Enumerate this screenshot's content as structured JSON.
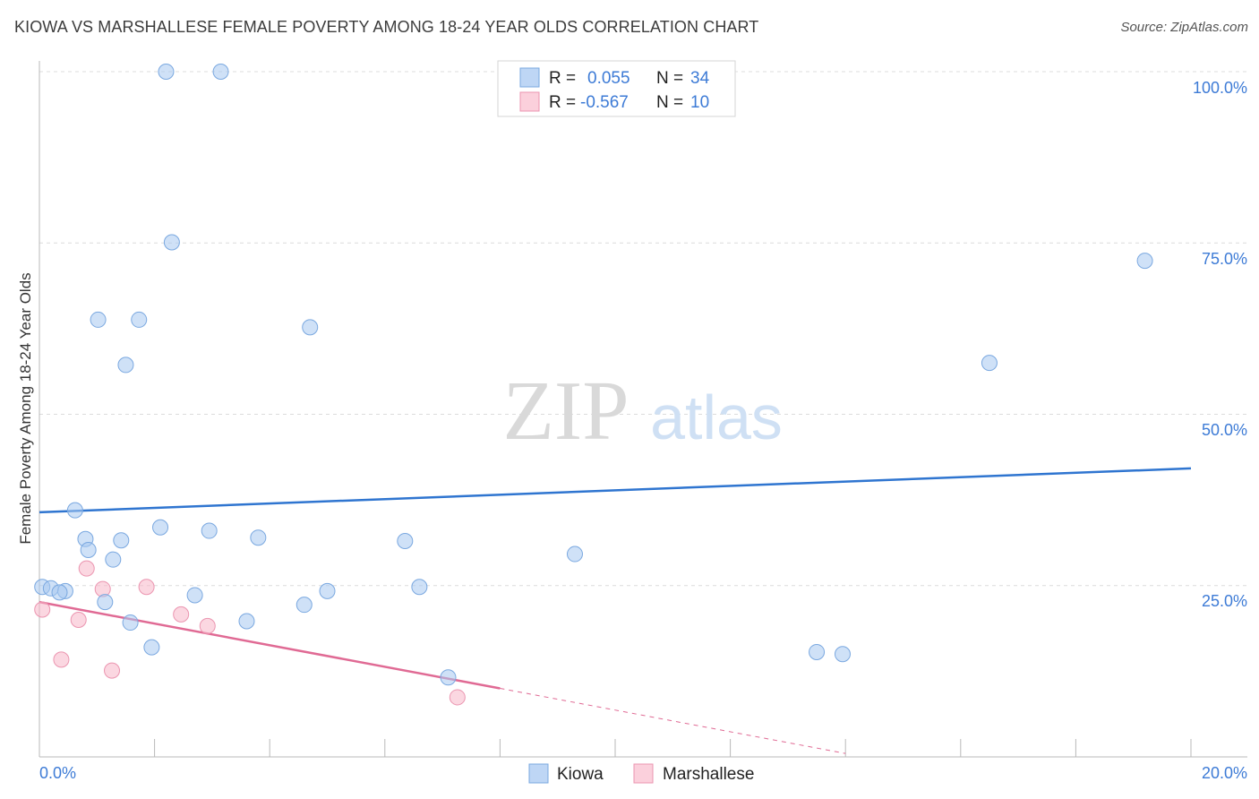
{
  "title": "KIOWA VS MARSHALLESE FEMALE POVERTY AMONG 18-24 YEAR OLDS CORRELATION CHART",
  "source": "Source: ZipAtlas.com",
  "watermark": {
    "zip": "ZIP",
    "atlas": "atlas"
  },
  "legend_box": {
    "rows": [
      {
        "r_label": "R =",
        "r_value": "0.055",
        "n_label": "N =",
        "n_value": "34"
      },
      {
        "r_label": "R =",
        "r_value": "-0.567",
        "n_label": "N =",
        "n_value": "10"
      }
    ]
  },
  "bottom_legend": {
    "kiowa": "Kiowa",
    "marshallese": "Marshallese"
  },
  "x_tick_labels": {
    "left": "0.0%",
    "right": "20.0%"
  },
  "y_tick_labels": [
    "100.0%",
    "75.0%",
    "50.0%",
    "25.0%"
  ],
  "chart_data": {
    "type": "scatter",
    "title": "KIOWA VS MARSHALLESE FEMALE POVERTY AMONG 18-24 YEAR OLDS CORRELATION CHART",
    "xlabel": "",
    "ylabel": "Female Poverty Among 18-24 Year Olds",
    "xlim": [
      0,
      20
    ],
    "ylim": [
      0,
      100
    ],
    "x_unit": "%",
    "y_unit": "%",
    "grid": true,
    "legend_position": "top-center",
    "colors": {
      "kiowa": "#a8c8f0",
      "kiowa_line": "#2f75d0",
      "marshallese": "#f7b6c8",
      "marshallese_line": "#e06a94",
      "accent_text": "#3d7bd6"
    },
    "series": [
      {
        "name": "Kiowa",
        "R": 0.055,
        "N": 34,
        "trend": {
          "x": [
            0,
            20
          ],
          "y": [
            35.7,
            42.1
          ]
        },
        "points": [
          {
            "x": 2.2,
            "y": 100
          },
          {
            "x": 3.15,
            "y": 100
          },
          {
            "x": 2.3,
            "y": 75.1
          },
          {
            "x": 1.02,
            "y": 63.8
          },
          {
            "x": 1.73,
            "y": 63.8
          },
          {
            "x": 4.7,
            "y": 62.7
          },
          {
            "x": 1.5,
            "y": 57.2
          },
          {
            "x": 16.5,
            "y": 57.5
          },
          {
            "x": 19.2,
            "y": 72.4
          },
          {
            "x": 0.62,
            "y": 36.0
          },
          {
            "x": 2.1,
            "y": 33.5
          },
          {
            "x": 2.95,
            "y": 33.0
          },
          {
            "x": 3.8,
            "y": 32.0
          },
          {
            "x": 0.8,
            "y": 31.8
          },
          {
            "x": 1.42,
            "y": 31.6
          },
          {
            "x": 6.35,
            "y": 31.5
          },
          {
            "x": 0.85,
            "y": 30.2
          },
          {
            "x": 9.3,
            "y": 29.6
          },
          {
            "x": 1.28,
            "y": 28.8
          },
          {
            "x": 0.05,
            "y": 24.8
          },
          {
            "x": 0.2,
            "y": 24.6
          },
          {
            "x": 0.45,
            "y": 24.2
          },
          {
            "x": 0.35,
            "y": 24.0
          },
          {
            "x": 2.7,
            "y": 23.6
          },
          {
            "x": 6.6,
            "y": 24.8
          },
          {
            "x": 5.0,
            "y": 24.2
          },
          {
            "x": 1.14,
            "y": 22.6
          },
          {
            "x": 4.6,
            "y": 22.2
          },
          {
            "x": 1.58,
            "y": 19.6
          },
          {
            "x": 3.6,
            "y": 19.8
          },
          {
            "x": 1.95,
            "y": 16.0
          },
          {
            "x": 13.5,
            "y": 15.3
          },
          {
            "x": 13.95,
            "y": 15.0
          },
          {
            "x": 7.1,
            "y": 11.6
          }
        ]
      },
      {
        "name": "Marshallese",
        "R": -0.567,
        "N": 10,
        "trend": {
          "x": [
            0,
            8.0
          ],
          "y": [
            22.6,
            10.0
          ]
        },
        "trend_extrapolated": {
          "x": [
            8.0,
            14.0
          ],
          "y": [
            10.0,
            0.5
          ]
        },
        "points": [
          {
            "x": 0.05,
            "y": 21.5
          },
          {
            "x": 0.82,
            "y": 27.5
          },
          {
            "x": 1.1,
            "y": 24.5
          },
          {
            "x": 1.86,
            "y": 24.8
          },
          {
            "x": 0.68,
            "y": 20.0
          },
          {
            "x": 2.46,
            "y": 20.8
          },
          {
            "x": 2.92,
            "y": 19.1
          },
          {
            "x": 0.38,
            "y": 14.2
          },
          {
            "x": 1.26,
            "y": 12.6
          },
          {
            "x": 7.26,
            "y": 8.7
          }
        ]
      }
    ]
  }
}
